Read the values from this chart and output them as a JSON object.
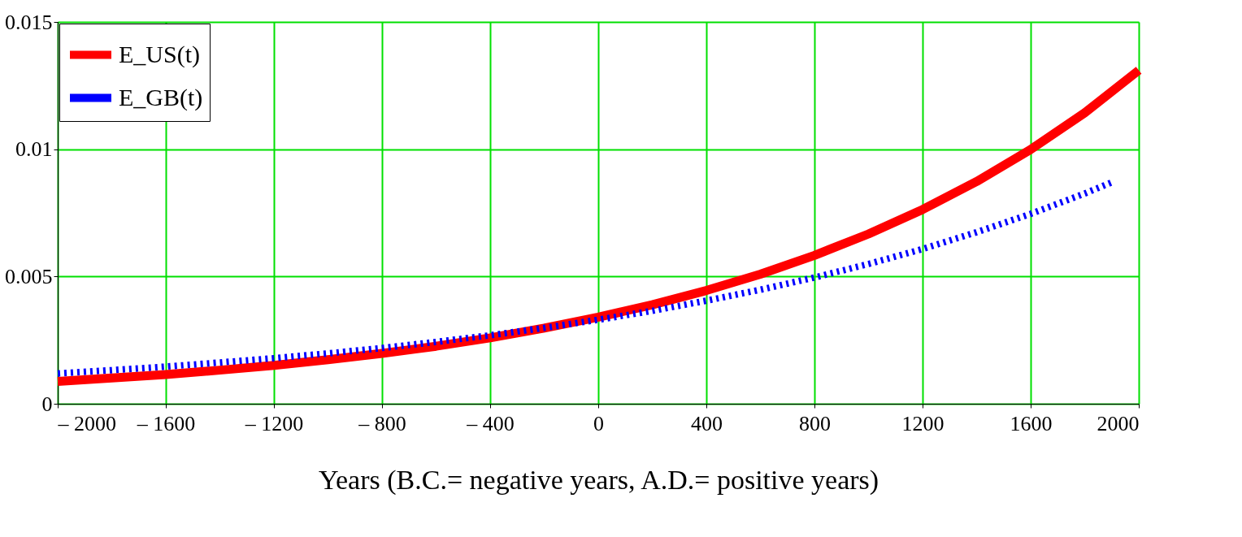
{
  "chart_data": {
    "type": "line",
    "xlabel": "Years (B.C.= negative years, A.D.= positive years)",
    "series": [
      {
        "name": "E_US(t)",
        "color": "#ff0000",
        "line_style": "solid",
        "x": [
          -2000,
          -1800,
          -1600,
          -1400,
          -1200,
          -1000,
          -800,
          -600,
          -400,
          -200,
          0,
          200,
          400,
          600,
          800,
          1000,
          1200,
          1400,
          1600,
          1800,
          2000
        ],
        "values": [
          0.00088,
          0.00101,
          0.00115,
          0.00132,
          0.00151,
          0.00173,
          0.00198,
          0.00226,
          0.00259,
          0.00297,
          0.0034,
          0.00389,
          0.00445,
          0.00509,
          0.00583,
          0.00667,
          0.00763,
          0.00873,
          0.00999,
          0.01143,
          0.0131
        ]
      },
      {
        "name": "E_GB(t)",
        "color": "#0000ff",
        "line_style": "dotted",
        "x": [
          -2000,
          -1800,
          -1600,
          -1400,
          -1200,
          -1000,
          -800,
          -600,
          -400,
          -200,
          0,
          200,
          400,
          600,
          800,
          1000,
          1200,
          1400,
          1600,
          1800,
          1900
        ],
        "values": [
          0.00119,
          0.00132,
          0.00146,
          0.00162,
          0.00179,
          0.00198,
          0.00219,
          0.00243,
          0.00269,
          0.00298,
          0.0033,
          0.00365,
          0.00405,
          0.00448,
          0.00496,
          0.00549,
          0.00608,
          0.00674,
          0.00746,
          0.00826,
          0.0087
        ]
      }
    ],
    "xlim": [
      -2000,
      2000
    ],
    "xticks": [
      {
        "value": -2000,
        "label": "– 2000"
      },
      {
        "value": -1600,
        "label": "– 1600"
      },
      {
        "value": -1200,
        "label": "– 1200"
      },
      {
        "value": -800,
        "label": "– 800"
      },
      {
        "value": -400,
        "label": "– 400"
      },
      0,
      400,
      800,
      1200,
      1600,
      2000
    ],
    "ylim": [
      0,
      0.015
    ],
    "yticks": [
      0,
      0.005,
      0.01,
      0.015
    ],
    "grid": true,
    "legend": "top left"
  }
}
